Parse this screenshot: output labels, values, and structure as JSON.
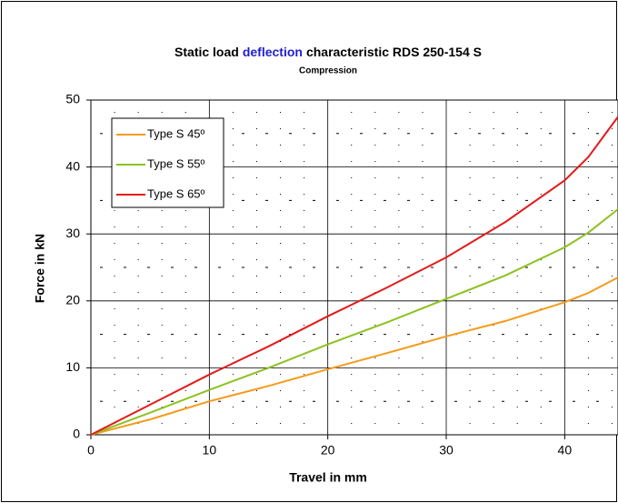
{
  "chart_data": {
    "type": "line",
    "title_parts": [
      "Static load",
      "deflection",
      "characteristic RDS 250-154 S"
    ],
    "title_colors": [
      "#000000",
      "#1f1fd0",
      "#000000"
    ],
    "subtitle": "Compression",
    "x_label": "Travel in mm",
    "y_label": "Force in kN",
    "x": [
      0,
      5,
      10,
      15,
      20,
      25,
      30,
      35,
      40,
      42,
      44.5
    ],
    "series": [
      {
        "name": "Type S 45º",
        "color": "#f59a1a",
        "values": [
          0,
          2.3,
          5,
          7.3,
          9.8,
          12.2,
          14.7,
          17,
          19.8,
          21.2,
          23.5
        ]
      },
      {
        "name": "Type S 55º",
        "color": "#8cc21f",
        "values": [
          0,
          3.3,
          6.7,
          10,
          13.5,
          16.8,
          20.3,
          23.8,
          28,
          30.2,
          33.7
        ]
      },
      {
        "name": "Type S 65º",
        "color": "#e31b1b",
        "values": [
          0,
          4.5,
          9,
          13.2,
          17.7,
          22,
          26.5,
          31.8,
          38,
          41.5,
          47.5
        ]
      }
    ],
    "xlim": [
      0,
      44.5
    ],
    "ylim": [
      0,
      50
    ],
    "xticks": [
      0,
      10,
      20,
      30,
      40
    ],
    "yticks": [
      0,
      10,
      20,
      30,
      40,
      50
    ],
    "x_minor_grid": [
      2,
      4,
      6,
      8,
      12,
      14,
      16,
      18,
      22,
      24,
      26,
      28,
      32,
      34,
      36,
      38,
      42,
      44
    ],
    "y_minor_grid": [
      5,
      15,
      25,
      35,
      45
    ],
    "grid": true,
    "legend": "upper left"
  }
}
